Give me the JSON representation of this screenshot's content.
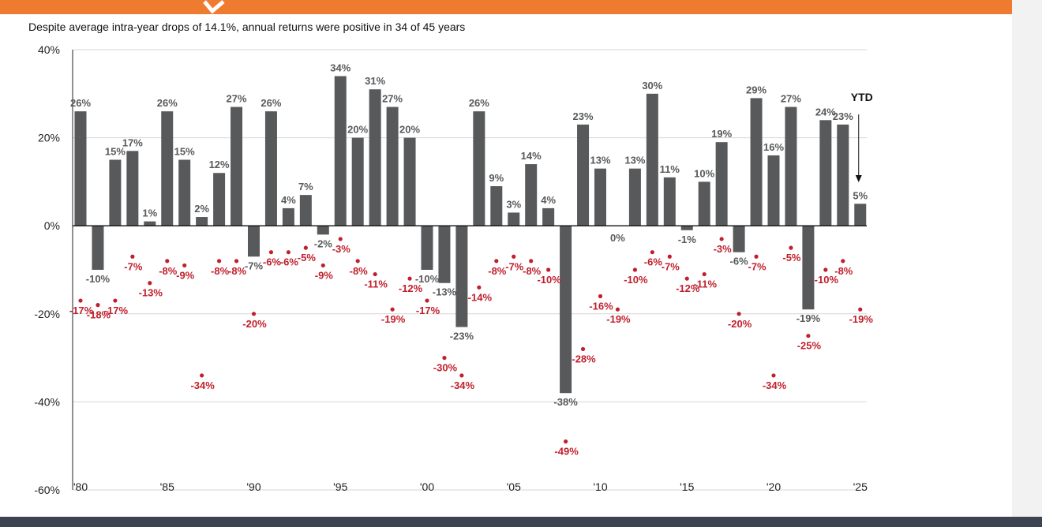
{
  "header": {
    "subtitle": "Despite average intra-year drops of 14.1%, annual returns were positive in 34 of 45 years"
  },
  "colors": {
    "band": "#ee7b30",
    "bar": "#58595b",
    "drawdown": "#c0202c",
    "bar_label": "#58595b",
    "footer": "#3c4351"
  },
  "chart_data": {
    "type": "bar",
    "title": "",
    "xlabel": "",
    "ylabel": "",
    "ylim": [
      -60,
      40
    ],
    "y_ticks": [
      40,
      20,
      0,
      -20,
      -40,
      -60
    ],
    "y_tick_labels": [
      "40%",
      "20%",
      "0%",
      "-20%",
      "-40%",
      "-60%"
    ],
    "x_tick_labels": [
      {
        "year": 1980,
        "label": "'80"
      },
      {
        "year": 1985,
        "label": "'85"
      },
      {
        "year": 1990,
        "label": "'90"
      },
      {
        "year": 1995,
        "label": "'95"
      },
      {
        "year": 2000,
        "label": "'00"
      },
      {
        "year": 2005,
        "label": "'05"
      },
      {
        "year": 2010,
        "label": "'10"
      },
      {
        "year": 2015,
        "label": "'15"
      },
      {
        "year": 2020,
        "label": "'20"
      },
      {
        "year": 2025,
        "label": "'25"
      }
    ],
    "grid": "horizontal",
    "categories": [
      1980,
      1981,
      1982,
      1983,
      1984,
      1985,
      1986,
      1987,
      1988,
      1989,
      1990,
      1991,
      1992,
      1993,
      1994,
      1995,
      1996,
      1997,
      1998,
      1999,
      2000,
      2001,
      2002,
      2003,
      2004,
      2005,
      2006,
      2007,
      2008,
      2009,
      2010,
      2011,
      2012,
      2013,
      2014,
      2015,
      2016,
      2017,
      2018,
      2019,
      2020,
      2021,
      2022,
      2023,
      2024,
      2025
    ],
    "series": [
      {
        "type": "bar",
        "values": [
          26,
          -10,
          15,
          17,
          1,
          26,
          15,
          2,
          12,
          27,
          -7,
          26,
          4,
          7,
          -2,
          34,
          20,
          31,
          27,
          20,
          -10,
          -13,
          -23,
          26,
          9,
          3,
          14,
          4,
          -38,
          23,
          13,
          0,
          13,
          30,
          11,
          -1,
          10,
          19,
          -6,
          29,
          16,
          27,
          -19,
          24,
          23,
          5
        ],
        "labels": [
          "26%",
          "-10%",
          "15%",
          "17%",
          "1%",
          "26%",
          "15%",
          "2%",
          "12%",
          "27%",
          "-7%",
          "26%",
          "4%",
          "7%",
          "-2%",
          "34%",
          "20%",
          "31%",
          "27%",
          "20%",
          "-10%",
          "-13%",
          "-23%",
          "26%",
          "9%",
          "3%",
          "14%",
          "4%",
          "-38%",
          "23%",
          "13%",
          "0%",
          "13%",
          "30%",
          "11%",
          "-1%",
          "10%",
          "19%",
          "-6%",
          "29%",
          "16%",
          "27%",
          "-19%",
          "24%",
          "23%",
          "5%"
        ]
      },
      {
        "type": "scatter",
        "values": [
          -17,
          -18,
          -17,
          -7,
          -13,
          -8,
          -9,
          -34,
          -8,
          -8,
          -20,
          -6,
          -6,
          -5,
          -9,
          -3,
          -8,
          -11,
          -19,
          -12,
          -17,
          -30,
          -34,
          -14,
          -8,
          -7,
          -8,
          -10,
          -49,
          -28,
          -16,
          -19,
          -10,
          -6,
          -7,
          -12,
          -11,
          -3,
          -20,
          -7,
          -34,
          -5,
          -25,
          -10,
          -8,
          -19
        ],
        "labels": [
          "-17%",
          "-18%",
          "-17%",
          "-7%",
          "-13%",
          "-8%",
          "-9%",
          "-34%",
          "-8%",
          "-8%",
          "-20%",
          "-6%",
          "-6%",
          "-5%",
          "-9%",
          "-3%",
          "-8%",
          "-11%",
          "-19%",
          "-12%",
          "-17%",
          "-30%",
          "-34%",
          "-14%",
          "-8%",
          "-7%",
          "-8%",
          "-10%",
          "-49%",
          "-28%",
          "-16%",
          "-19%",
          "-10%",
          "-6%",
          "-7%",
          "-12%",
          "-11%",
          "-3%",
          "-20%",
          "-7%",
          "-34%",
          "-5%",
          "-25%",
          "-10%",
          "-8%",
          "-19%"
        ]
      }
    ],
    "annotations": [
      {
        "text": "YTD",
        "year": 2025,
        "value": 5
      }
    ]
  }
}
